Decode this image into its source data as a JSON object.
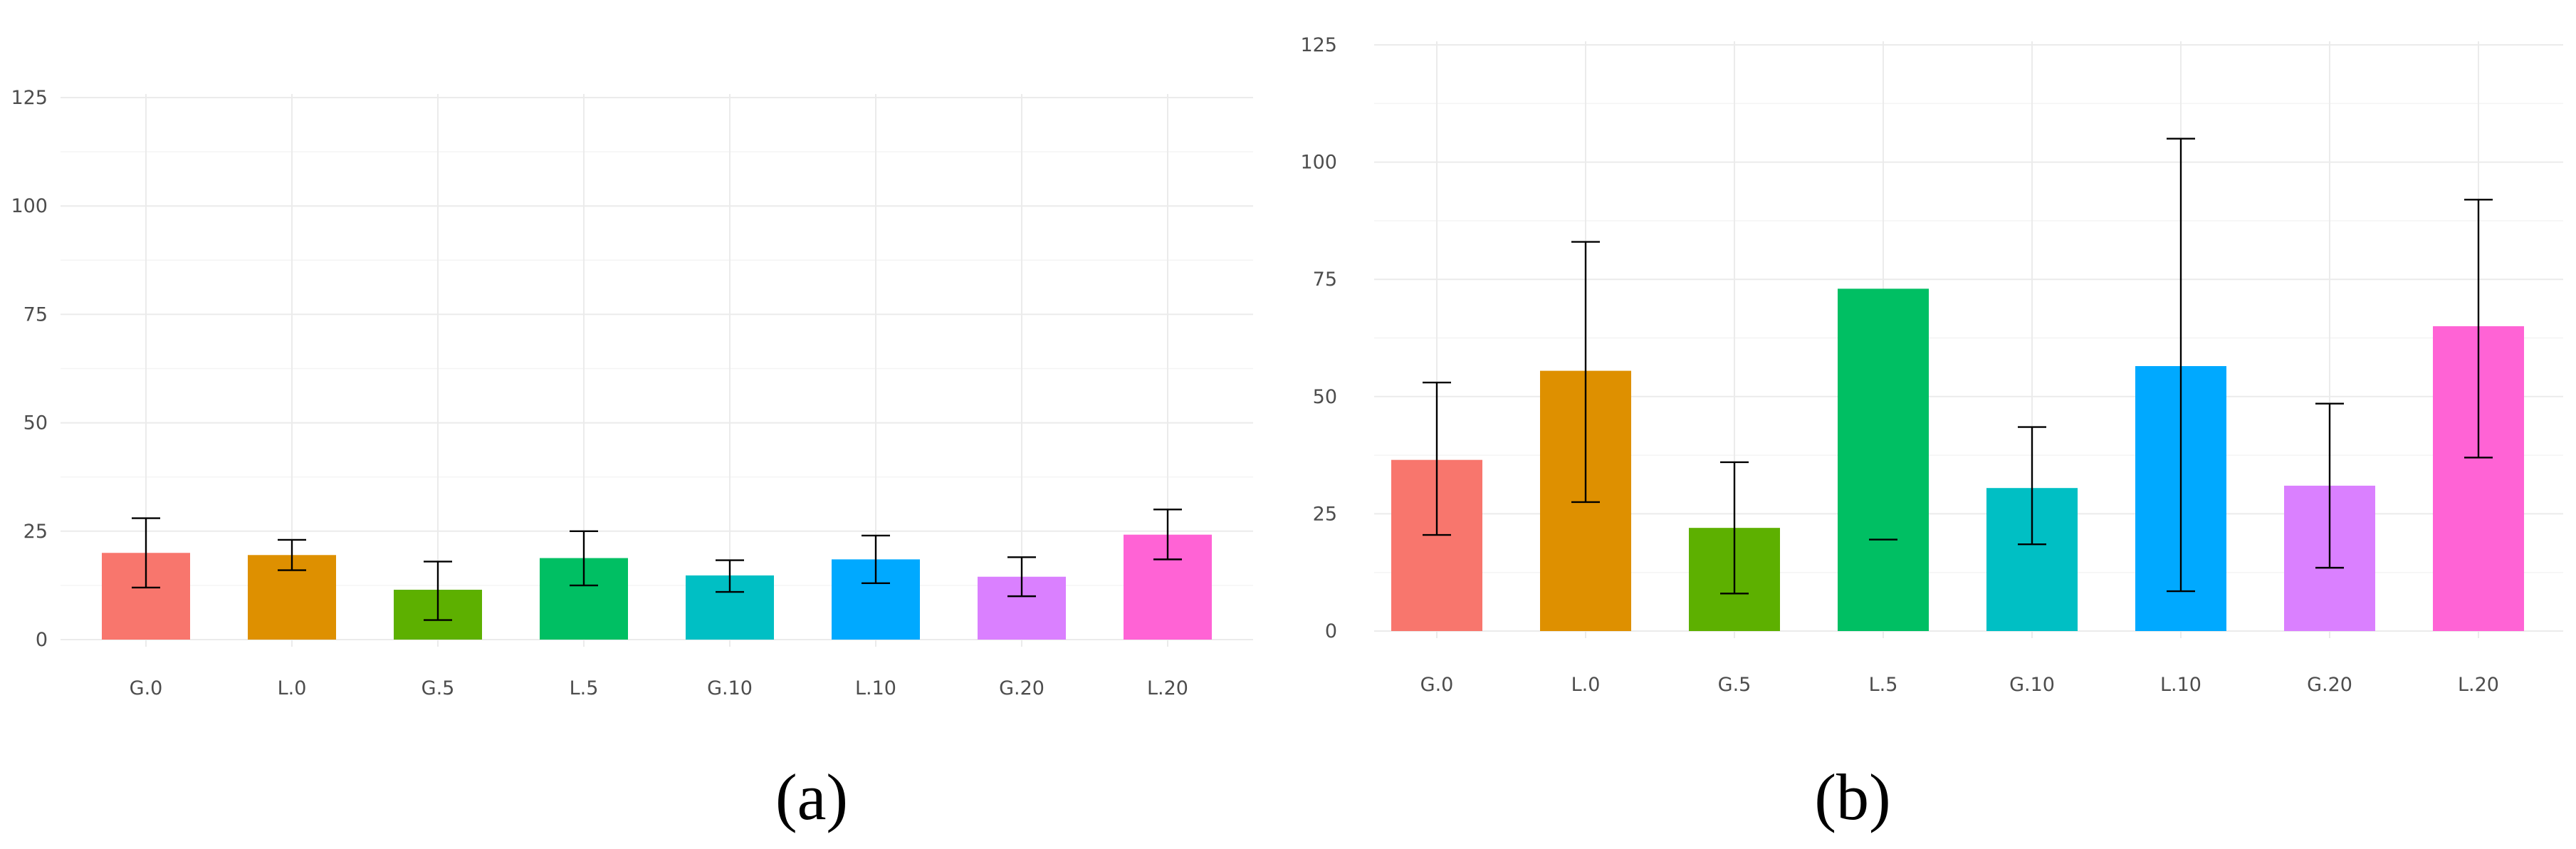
{
  "chart_data": [
    {
      "type": "bar",
      "panel_label": "(a)",
      "categories": [
        "G.0",
        "L.0",
        "G.5",
        "L.5",
        "G.10",
        "L.10",
        "G.20",
        "L.20"
      ],
      "values": [
        20,
        19.5,
        11.5,
        18.8,
        14.8,
        18.5,
        14.5,
        24.2
      ],
      "error_low": [
        12,
        16,
        4.5,
        12.5,
        11,
        13,
        10,
        18.5
      ],
      "error_high": [
        28,
        23,
        18,
        25,
        18.3,
        24,
        19,
        30
      ],
      "colors": [
        "#F8766D",
        "#DE9000",
        "#5DB000",
        "#00BF63",
        "#00BFC4",
        "#00A9FF",
        "#DA80FF",
        "#FF63D5"
      ],
      "y_ticks": [
        "0",
        "25",
        "50",
        "75",
        "100",
        "125"
      ],
      "ylim": [
        0,
        125
      ],
      "grid": true,
      "xlabel": "",
      "ylabel": ""
    },
    {
      "type": "bar",
      "panel_label": "(b)",
      "categories": [
        "G.0",
        "L.0",
        "G.5",
        "L.5",
        "G.10",
        "L.10",
        "G.20",
        "L.20"
      ],
      "values": [
        36.5,
        55.5,
        22,
        73,
        30.5,
        56.5,
        31,
        65
      ],
      "error_low": [
        20.5,
        27.5,
        8,
        19.5,
        18.5,
        8.5,
        13.5,
        37
      ],
      "error_high": [
        53,
        83,
        36,
        null,
        43.5,
        105,
        48.5,
        92
      ],
      "colors": [
        "#F8766D",
        "#DE9000",
        "#5DB000",
        "#00BF63",
        "#00BFC4",
        "#00A9FF",
        "#DA80FF",
        "#FF63D5"
      ],
      "y_ticks": [
        "0",
        "25",
        "50",
        "75",
        "100",
        "125"
      ],
      "ylim": [
        0,
        125
      ],
      "grid": true,
      "xlabel": "",
      "ylabel": ""
    }
  ]
}
